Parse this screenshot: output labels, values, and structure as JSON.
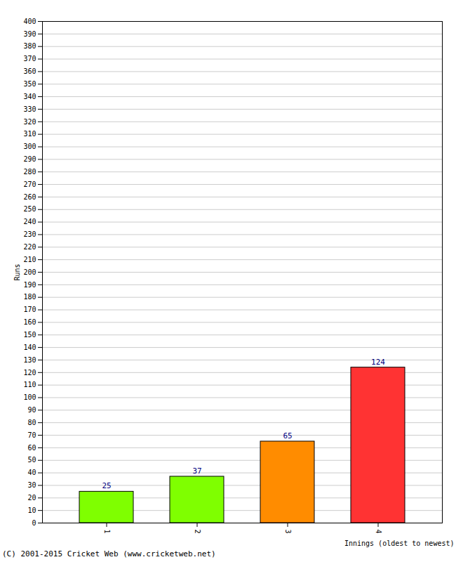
{
  "chart_data": {
    "type": "bar",
    "xlabel": "Innings (oldest to newest)",
    "ylabel": "Runs",
    "categories": [
      "1",
      "2",
      "3",
      "4"
    ],
    "values": [
      25,
      37,
      65,
      124
    ],
    "colors": [
      "#7fff00",
      "#7fff00",
      "#ff8c00",
      "#ff3333"
    ],
    "ylim": [
      0,
      400
    ],
    "yticks": [
      0,
      10,
      20,
      30,
      40,
      50,
      60,
      70,
      80,
      90,
      100,
      110,
      120,
      130,
      140,
      150,
      160,
      170,
      180,
      190,
      200,
      210,
      220,
      230,
      240,
      250,
      260,
      270,
      280,
      290,
      300,
      310,
      320,
      330,
      340,
      350,
      360,
      370,
      380,
      390,
      400
    ],
    "grid": true,
    "data_labels": true,
    "annotations": [
      "(C) 2001-2015 Cricket Web (www.cricketweb.net)"
    ]
  }
}
